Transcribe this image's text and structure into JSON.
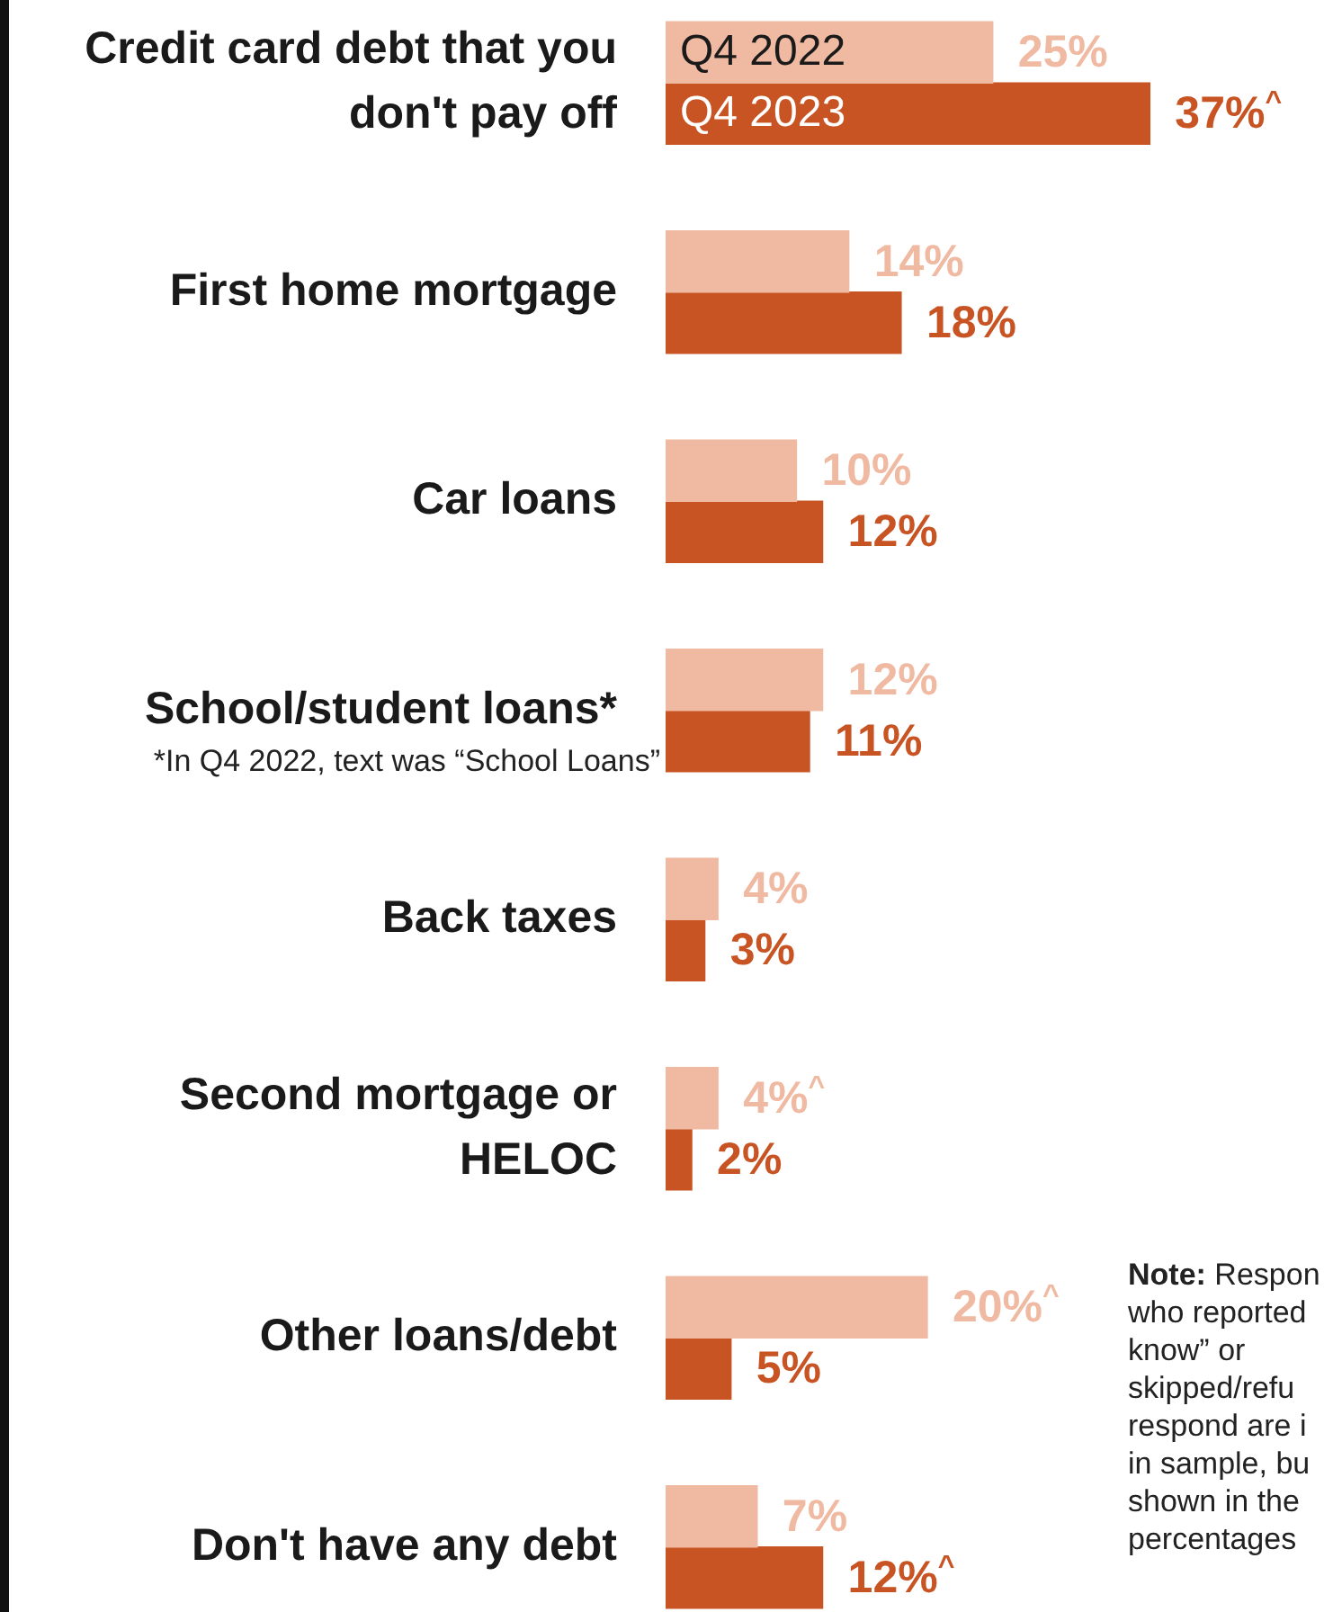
{
  "chart_data": {
    "type": "bar",
    "orientation": "horizontal",
    "categories": [
      "Credit card debt that you don't pay off",
      "First home mortgage",
      "Car loans",
      "School/student loans*",
      "Back taxes",
      "Second mortgage or HELOC",
      "Other loans/debt",
      "Don't have any debt"
    ],
    "series": [
      {
        "name": "Q4 2022",
        "color": "#f0b9a2",
        "values": [
          25,
          14,
          10,
          12,
          4,
          4,
          20,
          7
        ],
        "value_labels": [
          "25%",
          "14%",
          "10%",
          "12%",
          "4%",
          "4%^",
          "20%^",
          "7%"
        ]
      },
      {
        "name": "Q4 2023",
        "color": "#c85424",
        "values": [
          37,
          18,
          12,
          11,
          3,
          2,
          5,
          12
        ],
        "value_labels": [
          "37%^",
          "18%",
          "12%",
          "11%",
          "3%",
          "2%",
          "5%",
          "12%^"
        ]
      }
    ],
    "annotations": [
      "*In Q4 2022, text was “School Loans”",
      "Note: Respon\nwho reported\nknow” or\nskipped/refu\nrespond are i\nin sample, bu\nshown in the\npercentages"
    ]
  }
}
